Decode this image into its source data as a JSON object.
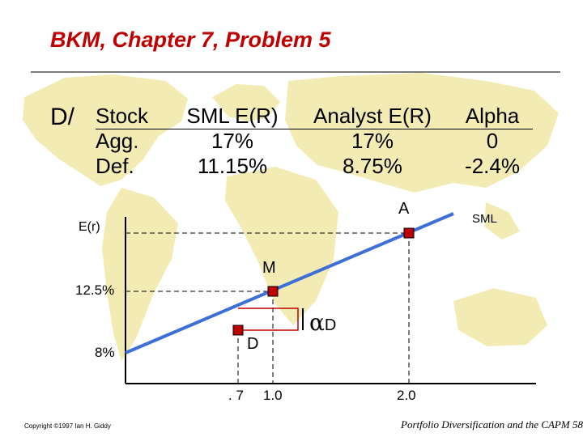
{
  "title": "BKM, Chapter 7, Problem 5",
  "table": {
    "prefix": "D/",
    "headers": [
      "Stock",
      "SML E(R)",
      "Analyst E(R)",
      "Alpha"
    ],
    "rows": [
      [
        "Agg.",
        "17%",
        "17%",
        "0"
      ],
      [
        "Def.",
        "11.15%",
        "8.75%",
        "-2.4%"
      ]
    ]
  },
  "diagram": {
    "y_axis_label": "E(r)",
    "line_label": "SML",
    "y_ticks": [
      "12.5%",
      "8%"
    ],
    "x_ticks": [
      ". 7",
      "1.0",
      "2.0"
    ],
    "points": [
      {
        "label": "A",
        "beta": 2.0,
        "return": 17
      },
      {
        "label": "M",
        "beta": 1.0,
        "return": 12.5
      },
      {
        "label": "D",
        "beta": 0.7,
        "return": 8.75
      }
    ],
    "alpha_symbol": "α",
    "alpha_subscript": "D",
    "colors": {
      "line": "#3d6fd6",
      "point": "#c00000",
      "bracket": "#c00000",
      "map": "#f3ebb4"
    }
  },
  "footer": {
    "left": "Copyright ©1997 Ian H. Giddy",
    "right": "Portfolio Diversification and the CAPM 58"
  }
}
